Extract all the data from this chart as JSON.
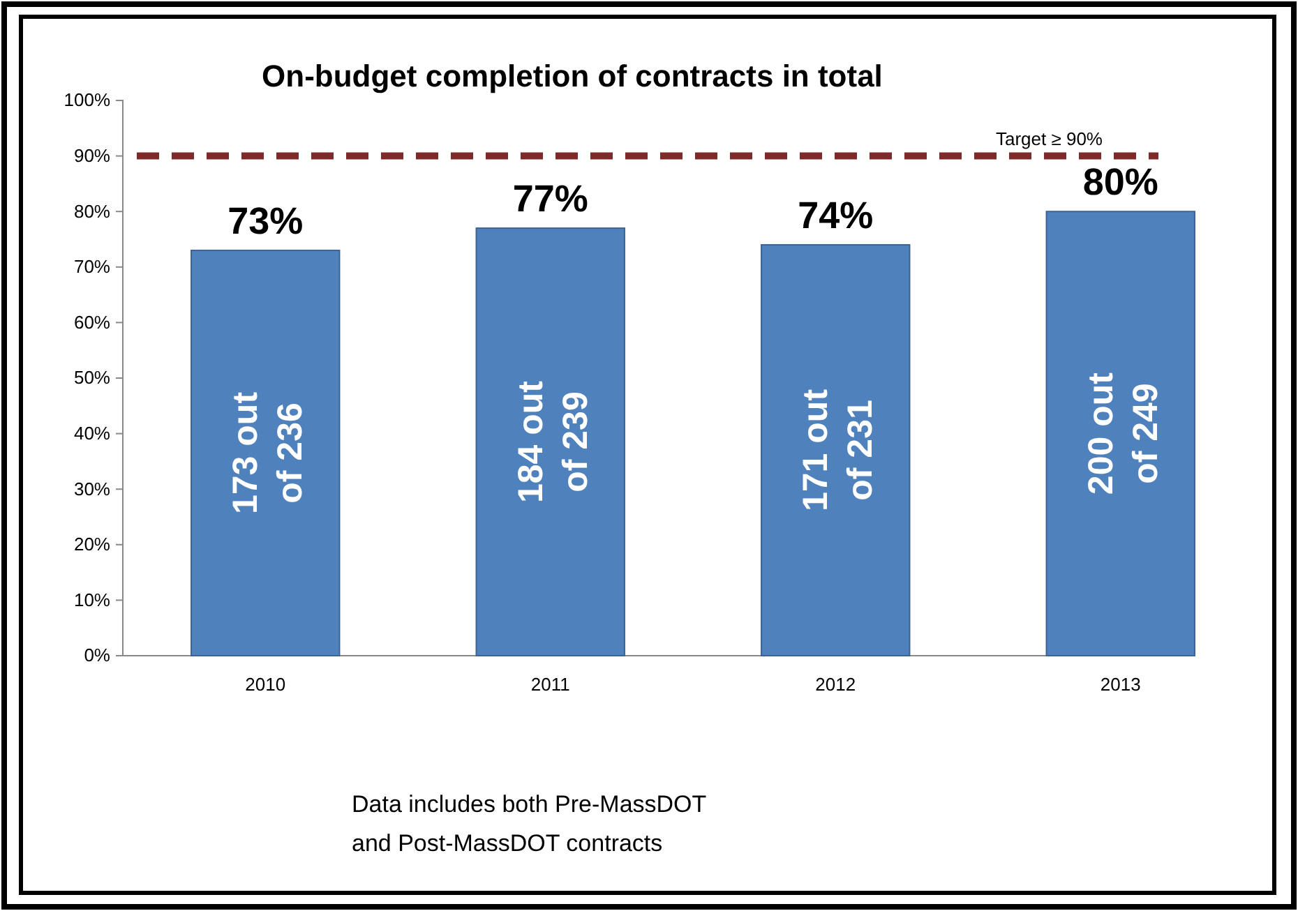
{
  "chart_data": {
    "type": "bar",
    "title": "On-budget completion of contracts in total",
    "categories": [
      "2010",
      "2011",
      "2012",
      "2013"
    ],
    "values": [
      73,
      77,
      74,
      80
    ],
    "color": "#4f81bd",
    "value_labels": [
      "73%",
      "77%",
      "74%",
      "80%"
    ],
    "ylim": [
      0,
      100
    ],
    "yticks": [
      {
        "value": 0,
        "label": "0%"
      },
      {
        "value": 10,
        "label": "10%"
      },
      {
        "value": 20,
        "label": "20%"
      },
      {
        "value": 30,
        "label": "30%"
      },
      {
        "value": 40,
        "label": "40%"
      },
      {
        "value": 50,
        "label": "50%"
      },
      {
        "value": 60,
        "label": "60%"
      },
      {
        "value": 70,
        "label": "70%"
      },
      {
        "value": 80,
        "label": "80%"
      },
      {
        "value": 90,
        "label": "90%"
      },
      {
        "value": 100,
        "label": "100%"
      }
    ],
    "ref_lines": [
      {
        "axis": "y",
        "value": 90,
        "label": "Target ≥ 90%",
        "color": "#7f2a2a",
        "line_style": "dashed"
      }
    ],
    "annotations": [
      "173 out\nof 236",
      "184 out\nof 239",
      "171 out\nof 231",
      "200 out\nof 249",
      "Data includes both Pre-MassDOT\nand Post-MassDOT contracts"
    ],
    "grid": false
  }
}
